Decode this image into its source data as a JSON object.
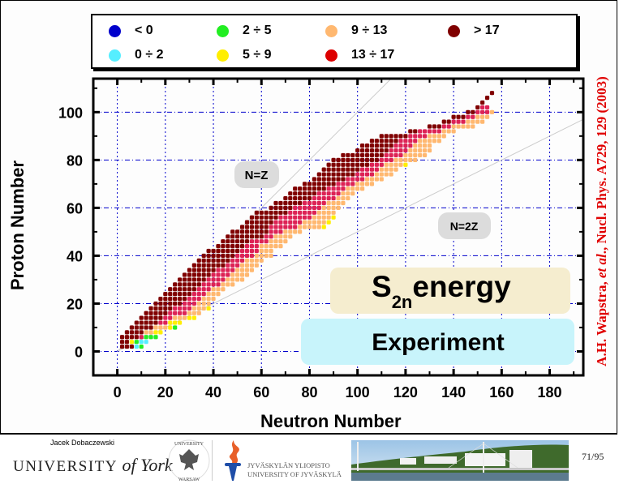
{
  "legend": {
    "items": [
      {
        "label": "< 0",
        "color": "#0000cc"
      },
      {
        "label": "0 ÷ 2",
        "color": "#55eeff"
      },
      {
        "label": "2 ÷ 5",
        "color": "#22ee22"
      },
      {
        "label": "5 ÷ 9",
        "color": "#ffee00"
      },
      {
        "label": "9 ÷ 13",
        "color": "#ffb870"
      },
      {
        "label": "13 ÷ 17",
        "color": "#dd0000"
      },
      {
        "label": "> 17",
        "color": "#800000"
      }
    ]
  },
  "annotations": {
    "nz": "N=Z",
    "n2z": "N=2Z",
    "title_main": "S",
    "title_sub": "2n",
    "title_rest": "energy",
    "experiment": "Experiment",
    "reference_pre": "A.H. Wapstra, ",
    "reference_ital": "et al",
    "reference_post": "., Nucl. Phys. A729, 129 (2003)"
  },
  "chart_data": {
    "type": "scatter",
    "title": "S2n energy",
    "xlabel": "Neutron Number",
    "ylabel": "Proton Number",
    "xlim": [
      -10,
      194
    ],
    "ylim": [
      -10,
      114
    ],
    "xticks": [
      0,
      20,
      40,
      60,
      80,
      100,
      120,
      140,
      160,
      180
    ],
    "yticks": [
      0,
      20,
      40,
      60,
      80,
      100
    ],
    "grid": true,
    "legend_position": "top",
    "reference_lines": [
      {
        "label": "N=Z",
        "slope": 1
      },
      {
        "label": "N=2Z",
        "slope": 0.5
      }
    ],
    "bands_note": "even-even nuclei rows: Z, N range, and color segments from proton-rich to neutron-rich (last N of each segment)",
    "rows": [
      {
        "z": 2,
        "segments": [
          [
            2,
            6,
            "#800000"
          ],
          [
            8,
            8,
            "#55eeff"
          ],
          [
            10,
            10,
            "#22ee22"
          ]
        ]
      },
      {
        "z": 4,
        "segments": [
          [
            2,
            4,
            "#800000"
          ],
          [
            6,
            6,
            "#ffee00"
          ],
          [
            8,
            8,
            "#22ee22"
          ],
          [
            10,
            12,
            "#55eeff"
          ]
        ]
      },
      {
        "z": 6,
        "segments": [
          [
            2,
            8,
            "#800000"
          ],
          [
            10,
            10,
            "#dd2255"
          ],
          [
            12,
            12,
            "#22ee22"
          ],
          [
            14,
            16,
            "#22ee22"
          ]
        ]
      },
      {
        "z": 8,
        "segments": [
          [
            4,
            10,
            "#800000"
          ],
          [
            12,
            14,
            "#ffb870"
          ],
          [
            16,
            18,
            "#ffee00"
          ]
        ]
      },
      {
        "z": 10,
        "segments": [
          [
            6,
            14,
            "#800000"
          ],
          [
            16,
            20,
            "#ffb870"
          ],
          [
            22,
            22,
            "#ffee00"
          ],
          [
            24,
            24,
            "#22ee22"
          ]
        ]
      },
      {
        "z": 12,
        "segments": [
          [
            8,
            16,
            "#800000"
          ],
          [
            18,
            20,
            "#dd2255"
          ],
          [
            22,
            26,
            "#ffee00"
          ]
        ]
      },
      {
        "z": 14,
        "segments": [
          [
            10,
            18,
            "#800000"
          ],
          [
            20,
            22,
            "#dd2255"
          ],
          [
            24,
            28,
            "#ffb870"
          ],
          [
            30,
            32,
            "#ffee00"
          ]
        ]
      },
      {
        "z": 16,
        "segments": [
          [
            12,
            20,
            "#800000"
          ],
          [
            22,
            28,
            "#dd2255"
          ],
          [
            30,
            34,
            "#ffb870"
          ]
        ]
      },
      {
        "z": 18,
        "segments": [
          [
            14,
            22,
            "#800000"
          ],
          [
            24,
            30,
            "#dd2255"
          ],
          [
            32,
            36,
            "#ffb870"
          ],
          [
            38,
            38,
            "#ffee00"
          ]
        ]
      },
      {
        "z": 20,
        "segments": [
          [
            16,
            26,
            "#800000"
          ],
          [
            28,
            32,
            "#dd2255"
          ],
          [
            34,
            38,
            "#ffb870"
          ]
        ]
      },
      {
        "z": 22,
        "segments": [
          [
            18,
            28,
            "#800000"
          ],
          [
            30,
            34,
            "#dd2255"
          ],
          [
            36,
            40,
            "#ffb870"
          ]
        ]
      },
      {
        "z": 24,
        "segments": [
          [
            20,
            30,
            "#800000"
          ],
          [
            32,
            36,
            "#dd2255"
          ],
          [
            38,
            42,
            "#ffb870"
          ]
        ]
      },
      {
        "z": 26,
        "segments": [
          [
            22,
            32,
            "#800000"
          ],
          [
            34,
            38,
            "#dd2255"
          ],
          [
            40,
            44,
            "#ffb870"
          ]
        ]
      },
      {
        "z": 28,
        "segments": [
          [
            24,
            34,
            "#800000"
          ],
          [
            36,
            42,
            "#dd2255"
          ],
          [
            44,
            48,
            "#ffb870"
          ]
        ]
      },
      {
        "z": 30,
        "segments": [
          [
            26,
            36,
            "#800000"
          ],
          [
            38,
            44,
            "#dd2255"
          ],
          [
            46,
            52,
            "#ffb870"
          ]
        ]
      },
      {
        "z": 32,
        "segments": [
          [
            28,
            38,
            "#800000"
          ],
          [
            40,
            46,
            "#dd2255"
          ],
          [
            48,
            54,
            "#ffb870"
          ]
        ]
      },
      {
        "z": 34,
        "segments": [
          [
            30,
            40,
            "#800000"
          ],
          [
            42,
            48,
            "#dd2255"
          ],
          [
            50,
            56,
            "#ffb870"
          ]
        ]
      },
      {
        "z": 36,
        "segments": [
          [
            32,
            44,
            "#800000"
          ],
          [
            46,
            50,
            "#dd2255"
          ],
          [
            52,
            58,
            "#ffb870"
          ]
        ]
      },
      {
        "z": 38,
        "segments": [
          [
            34,
            46,
            "#800000"
          ],
          [
            48,
            52,
            "#dd2255"
          ],
          [
            54,
            60,
            "#ffb870"
          ]
        ]
      },
      {
        "z": 40,
        "segments": [
          [
            36,
            48,
            "#800000"
          ],
          [
            50,
            56,
            "#dd2255"
          ],
          [
            58,
            64,
            "#ffb870"
          ]
        ]
      },
      {
        "z": 42,
        "segments": [
          [
            38,
            50,
            "#800000"
          ],
          [
            52,
            58,
            "#dd2255"
          ],
          [
            60,
            64,
            "#ffb870"
          ]
        ]
      },
      {
        "z": 44,
        "segments": [
          [
            42,
            52,
            "#800000"
          ],
          [
            54,
            58,
            "#dd2255"
          ],
          [
            60,
            68,
            "#ffb870"
          ]
        ]
      },
      {
        "z": 46,
        "segments": [
          [
            44,
            54,
            "#800000"
          ],
          [
            56,
            62,
            "#dd2255"
          ],
          [
            64,
            70,
            "#ffb870"
          ]
        ]
      },
      {
        "z": 48,
        "segments": [
          [
            46,
            60,
            "#800000"
          ],
          [
            62,
            64,
            "#dd2255"
          ],
          [
            66,
            72,
            "#ffb870"
          ]
        ]
      },
      {
        "z": 50,
        "segments": [
          [
            48,
            62,
            "#800000"
          ],
          [
            64,
            68,
            "#dd2255"
          ],
          [
            70,
            76,
            "#ffb870"
          ]
        ]
      },
      {
        "z": 52,
        "segments": [
          [
            52,
            62,
            "#800000"
          ],
          [
            64,
            74,
            "#dd2255"
          ],
          [
            76,
            84,
            "#ffb870"
          ],
          [
            86,
            86,
            "#ffee00"
          ]
        ]
      },
      {
        "z": 54,
        "segments": [
          [
            54,
            64,
            "#800000"
          ],
          [
            66,
            76,
            "#dd2255"
          ],
          [
            78,
            86,
            "#ffb870"
          ],
          [
            88,
            88,
            "#ffee00"
          ]
        ]
      },
      {
        "z": 56,
        "segments": [
          [
            56,
            66,
            "#800000"
          ],
          [
            68,
            80,
            "#dd2255"
          ],
          [
            82,
            88,
            "#ffb870"
          ],
          [
            90,
            90,
            "#ffee00"
          ]
        ]
      },
      {
        "z": 58,
        "segments": [
          [
            58,
            70,
            "#800000"
          ],
          [
            72,
            82,
            "#dd2255"
          ],
          [
            84,
            90,
            "#ffb870"
          ]
        ]
      },
      {
        "z": 60,
        "segments": [
          [
            64,
            72,
            "#800000"
          ],
          [
            74,
            84,
            "#dd2255"
          ],
          [
            86,
            92,
            "#ffb870"
          ]
        ]
      },
      {
        "z": 62,
        "segments": [
          [
            66,
            76,
            "#800000"
          ],
          [
            78,
            86,
            "#dd2255"
          ],
          [
            88,
            94,
            "#ffb870"
          ]
        ]
      },
      {
        "z": 64,
        "segments": [
          [
            70,
            80,
            "#800000"
          ],
          [
            82,
            90,
            "#dd2255"
          ],
          [
            92,
            96,
            "#ffb870"
          ]
        ]
      },
      {
        "z": 66,
        "segments": [
          [
            72,
            82,
            "#800000"
          ],
          [
            84,
            92,
            "#dd2255"
          ],
          [
            94,
            98,
            "#ffb870"
          ]
        ]
      },
      {
        "z": 68,
        "segments": [
          [
            74,
            86,
            "#800000"
          ],
          [
            88,
            94,
            "#dd2255"
          ],
          [
            96,
            102,
            "#ffb870"
          ]
        ]
      },
      {
        "z": 70,
        "segments": [
          [
            78,
            90,
            "#800000"
          ],
          [
            92,
            98,
            "#dd2255"
          ],
          [
            100,
            106,
            "#ffb870"
          ]
        ]
      },
      {
        "z": 72,
        "segments": [
          [
            82,
            94,
            "#800000"
          ],
          [
            96,
            102,
            "#dd2255"
          ],
          [
            104,
            110,
            "#ffb870"
          ]
        ]
      },
      {
        "z": 74,
        "segments": [
          [
            84,
            98,
            "#800000"
          ],
          [
            100,
            106,
            "#dd2255"
          ],
          [
            108,
            114,
            "#ffb870"
          ]
        ]
      },
      {
        "z": 76,
        "segments": [
          [
            86,
            100,
            "#800000"
          ],
          [
            102,
            108,
            "#dd2255"
          ],
          [
            110,
            116,
            "#ffb870"
          ]
        ]
      },
      {
        "z": 78,
        "segments": [
          [
            88,
            104,
            "#800000"
          ],
          [
            106,
            110,
            "#dd2255"
          ],
          [
            112,
            118,
            "#ffb870"
          ],
          [
            120,
            120,
            "#ffee00"
          ]
        ]
      },
      {
        "z": 80,
        "segments": [
          [
            90,
            108,
            "#800000"
          ],
          [
            110,
            114,
            "#dd2255"
          ],
          [
            116,
            124,
            "#ffb870"
          ]
        ]
      },
      {
        "z": 82,
        "segments": [
          [
            94,
            110,
            "#800000"
          ],
          [
            112,
            118,
            "#dd2255"
          ],
          [
            120,
            128,
            "#ffb870"
          ]
        ]
      },
      {
        "z": 84,
        "segments": [
          [
            100,
            112,
            "#800000"
          ],
          [
            114,
            120,
            "#dd2255"
          ],
          [
            122,
            130,
            "#ffb870"
          ]
        ]
      },
      {
        "z": 86,
        "segments": [
          [
            102,
            114,
            "#800000"
          ],
          [
            116,
            122,
            "#dd2255"
          ],
          [
            124,
            130,
            "#ffb870"
          ]
        ]
      },
      {
        "z": 88,
        "segments": [
          [
            106,
            116,
            "#800000"
          ],
          [
            118,
            124,
            "#dd2255"
          ],
          [
            126,
            134,
            "#ffb870"
          ]
        ]
      },
      {
        "z": 90,
        "segments": [
          [
            110,
            120,
            "#800000"
          ],
          [
            122,
            128,
            "#dd2255"
          ],
          [
            130,
            136,
            "#ffb870"
          ]
        ]
      },
      {
        "z": 92,
        "segments": [
          [
            122,
            124,
            "#800000"
          ],
          [
            126,
            134,
            "#dd2255"
          ],
          [
            136,
            140,
            "#ffb870"
          ]
        ]
      },
      {
        "z": 94,
        "segments": [
          [
            130,
            134,
            "#800000"
          ],
          [
            136,
            138,
            "#dd2255"
          ],
          [
            140,
            148,
            "#ffb870"
          ]
        ]
      },
      {
        "z": 96,
        "segments": [
          [
            136,
            138,
            "#800000"
          ],
          [
            140,
            144,
            "#dd2255"
          ],
          [
            146,
            152,
            "#ffb870"
          ]
        ]
      },
      {
        "z": 98,
        "segments": [
          [
            140,
            144,
            "#800000"
          ],
          [
            146,
            148,
            "#dd2255"
          ],
          [
            150,
            154,
            "#ffb870"
          ]
        ]
      },
      {
        "z": 100,
        "segments": [
          [
            146,
            148,
            "#800000"
          ],
          [
            150,
            154,
            "#dd2255"
          ],
          [
            156,
            156,
            "#ffb870"
          ]
        ]
      },
      {
        "z": 102,
        "segments": [
          [
            150,
            150,
            "#800000"
          ],
          [
            152,
            154,
            "#dd2255"
          ]
        ]
      },
      {
        "z": 104,
        "segments": [
          [
            152,
            152,
            "#800000"
          ]
        ]
      },
      {
        "z": 106,
        "segments": [
          [
            154,
            154,
            "#800000"
          ]
        ]
      },
      {
        "z": 108,
        "segments": [
          [
            156,
            156,
            "#800000"
          ]
        ]
      }
    ]
  },
  "footer": {
    "author": "Jacek Dobaczewski",
    "york_pre": "UNIVERSITY ",
    "york_post": "of York",
    "warsaw_seal_text": "UNIVERSITY OF WARSAW",
    "jyu_line1": "JYVÄSKYLÄN YLIOPISTO",
    "jyu_line2": "UNIVERSITY OF JYVÄSKYLÄ",
    "page": "71/95"
  }
}
